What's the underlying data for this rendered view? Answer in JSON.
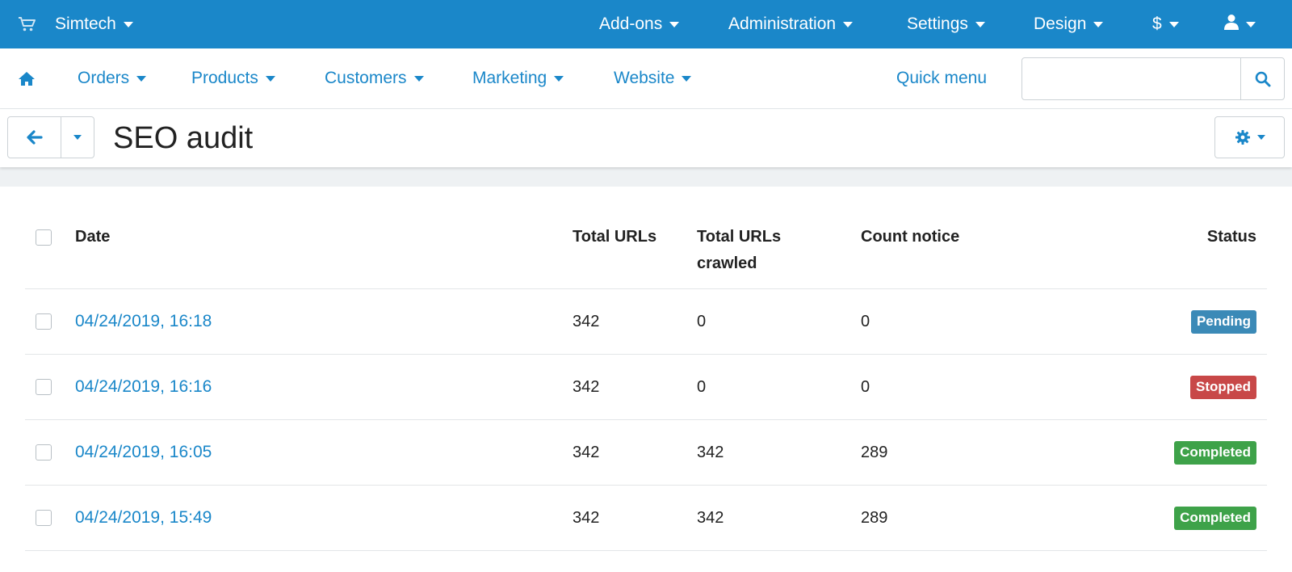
{
  "topbar": {
    "brand": "Simtech",
    "items": {
      "addons": "Add-ons",
      "administration": "Administration",
      "settings": "Settings",
      "design": "Design",
      "currency": "$"
    },
    "icons": {
      "cart": "shopping-cart-icon",
      "user": "user-icon"
    },
    "color": "#1a87c9"
  },
  "navbar": {
    "orders": "Orders",
    "products": "Products",
    "customers": "Customers",
    "marketing": "Marketing",
    "website": "Website",
    "quick_menu": "Quick menu",
    "search": {
      "value": "",
      "placeholder": ""
    }
  },
  "page": {
    "title": "SEO audit"
  },
  "table": {
    "headers": {
      "date": "Date",
      "total_urls": "Total URLs",
      "total_crawled": "Total URLs crawled",
      "count_notice": "Count notice",
      "status": "Status"
    },
    "rows": [
      {
        "date": "04/24/2019, 16:18",
        "total_urls": "342",
        "crawled": "0",
        "notice": "0",
        "status": "Pending"
      },
      {
        "date": "04/24/2019, 16:16",
        "total_urls": "342",
        "crawled": "0",
        "notice": "0",
        "status": "Stopped"
      },
      {
        "date": "04/24/2019, 16:05",
        "total_urls": "342",
        "crawled": "342",
        "notice": "289",
        "status": "Completed"
      },
      {
        "date": "04/24/2019, 15:49",
        "total_urls": "342",
        "crawled": "342",
        "notice": "289",
        "status": "Completed"
      }
    ]
  },
  "status_colors": {
    "Pending": "#3b8ab7",
    "Stopped": "#c84848",
    "Completed": "#3ea249"
  }
}
